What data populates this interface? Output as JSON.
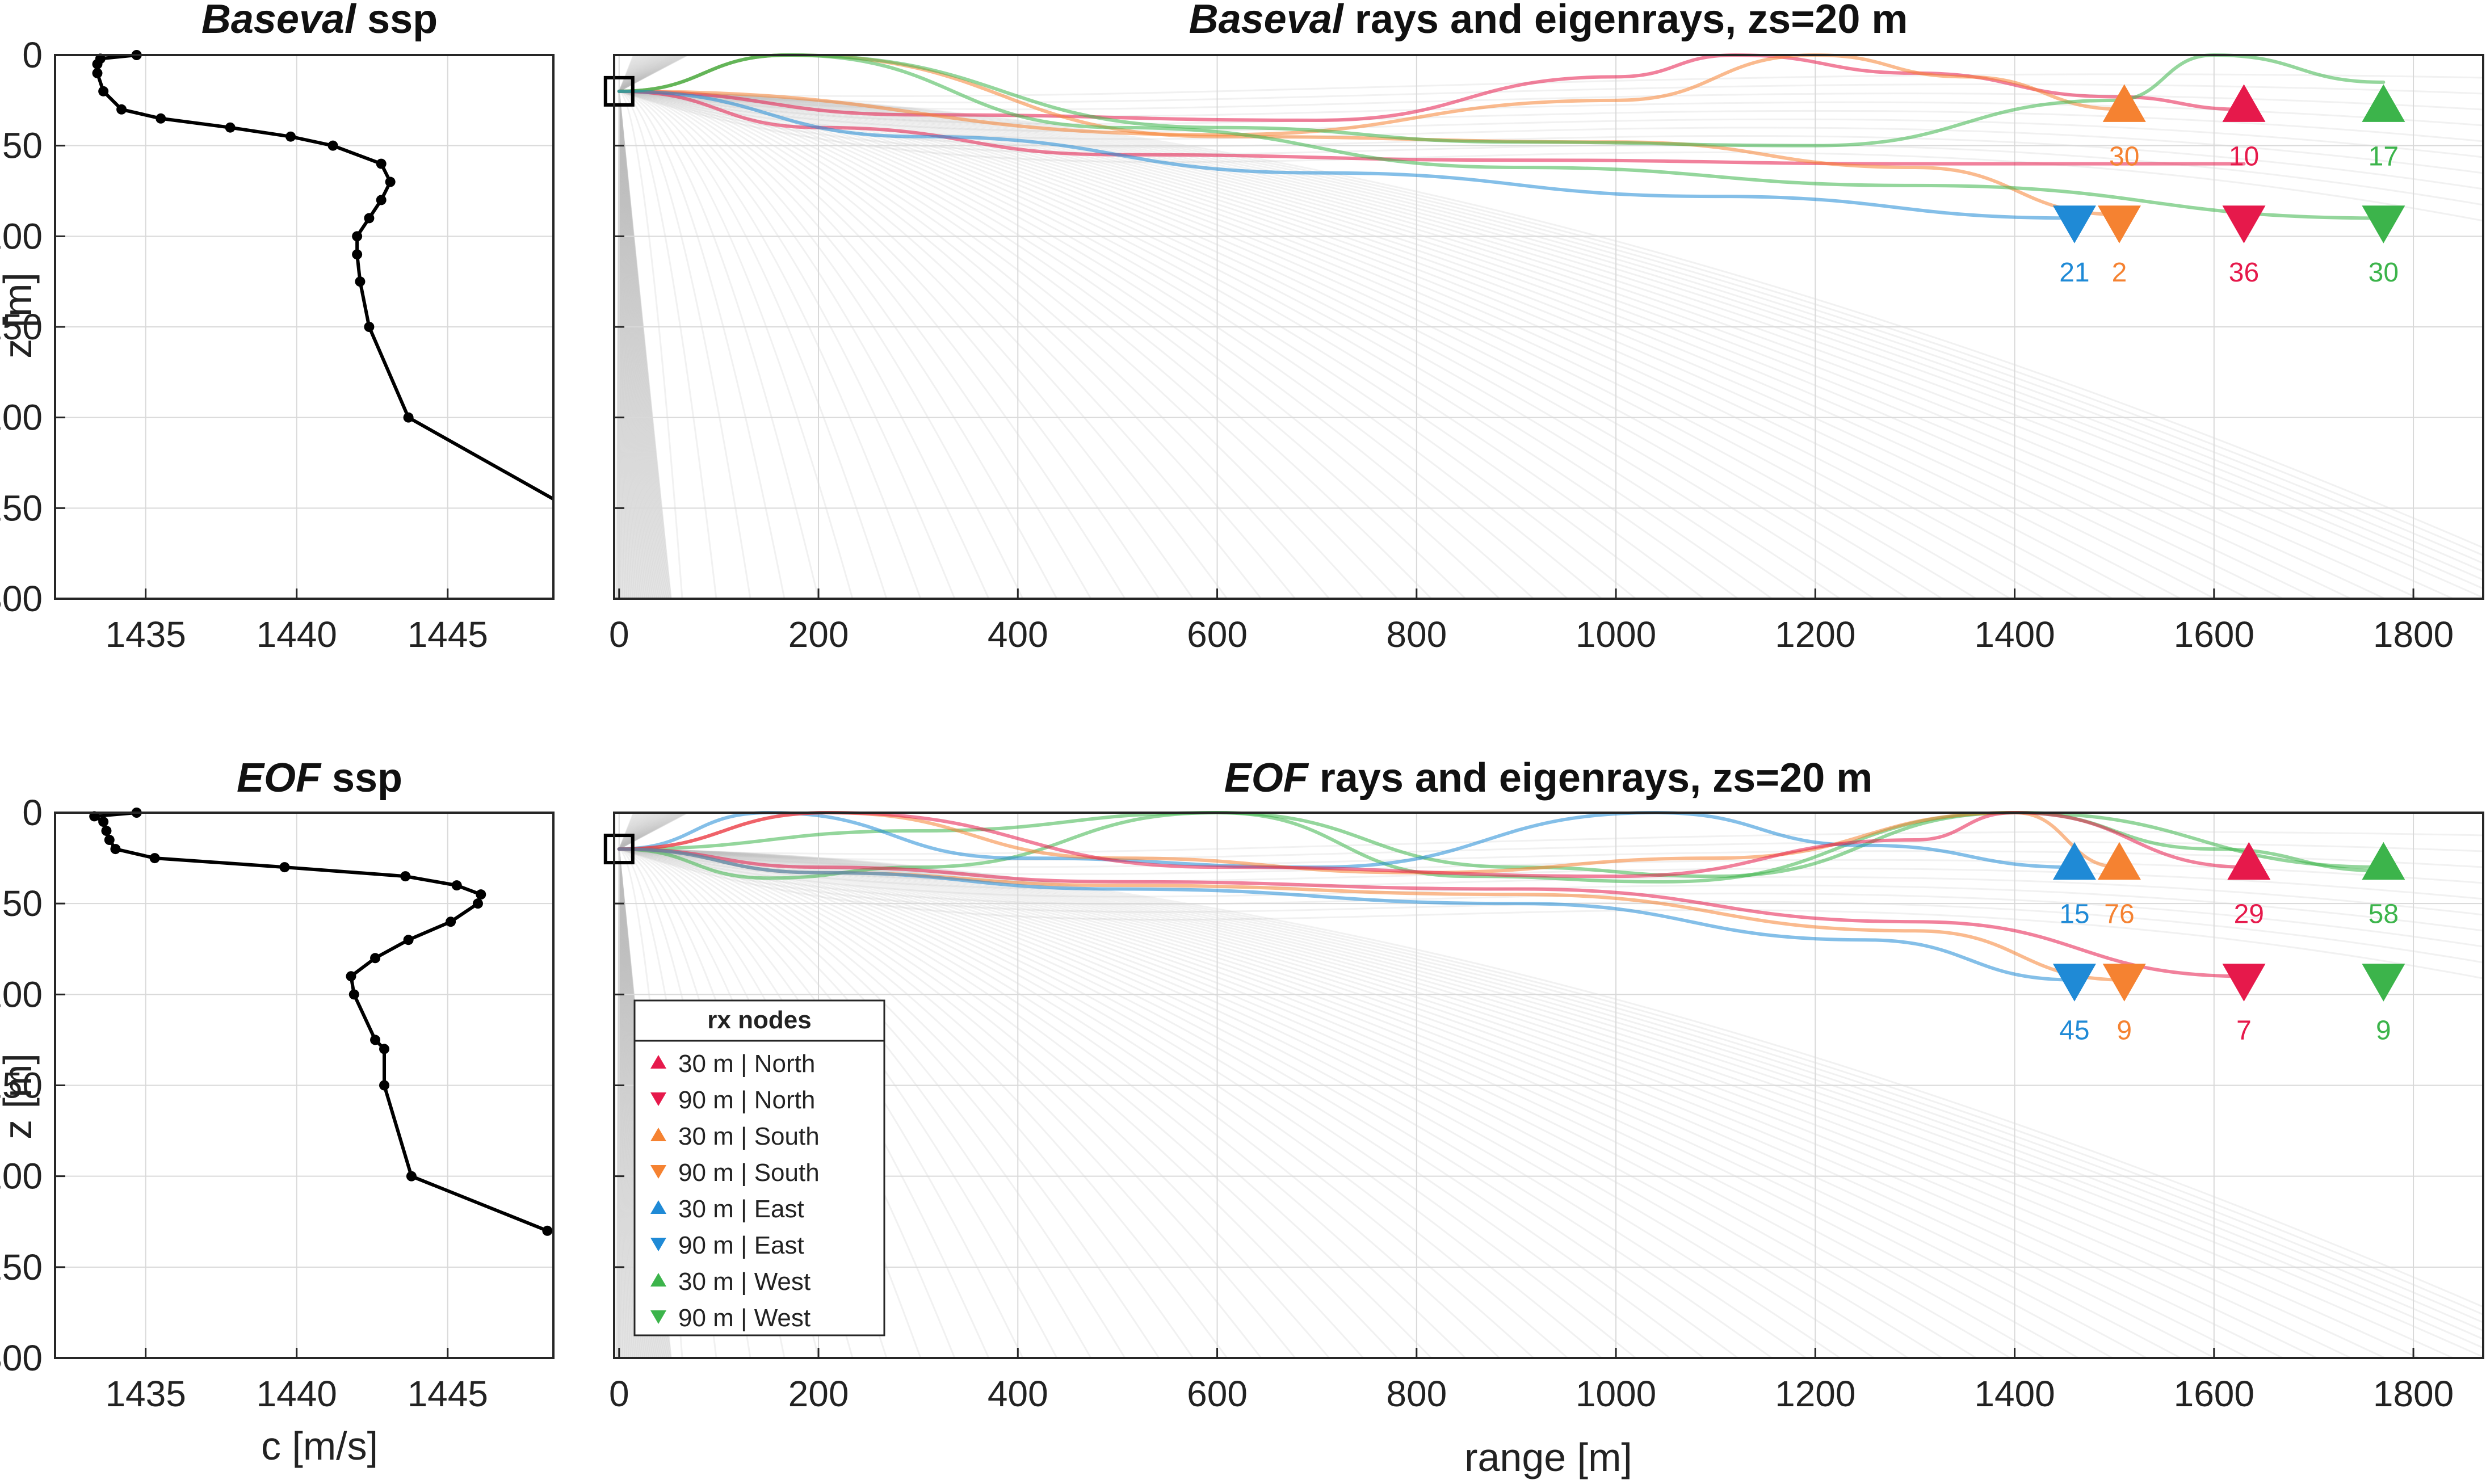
{
  "colors": {
    "north": "#e6194b",
    "south": "#f58231",
    "east": "#1f8ad6",
    "west": "#3cb44b",
    "ssp_line": "#000000",
    "grid": "#d9d9d9",
    "fan": "#bdbdbd"
  },
  "legend": {
    "title": "rx nodes",
    "items": [
      {
        "label": "30 m | North",
        "dir": "north",
        "marker": "up"
      },
      {
        "label": "90 m | North",
        "dir": "north",
        "marker": "down"
      },
      {
        "label": "30 m | South",
        "dir": "south",
        "marker": "up"
      },
      {
        "label": "90 m | South",
        "dir": "south",
        "marker": "down"
      },
      {
        "label": "30 m | East",
        "dir": "east",
        "marker": "up"
      },
      {
        "label": "90 m | East",
        "dir": "east",
        "marker": "down"
      },
      {
        "label": "30 m | West",
        "dir": "west",
        "marker": "up"
      },
      {
        "label": "90 m | West",
        "dir": "west",
        "marker": "down"
      }
    ]
  },
  "chart_data": [
    {
      "type": "line",
      "title_italic": "Baseval",
      "title_rest": " ssp",
      "xlabel": "",
      "ylabel": "z [m]",
      "xlim": [
        1432,
        1448.5
      ],
      "ylim": [
        0,
        300
      ],
      "y_reversed": true,
      "xticks": [
        1435,
        1440,
        1445
      ],
      "yticks": [
        0,
        50,
        100,
        150,
        200,
        250,
        300
      ],
      "grid": true,
      "series": [
        {
          "x": [
            1434.7,
            1433.5,
            1433.4,
            1433.4,
            1433.6,
            1434.2,
            1435.5,
            1437.8,
            1439.8,
            1441.2,
            1442.8,
            1443.1,
            1442.8,
            1442.4,
            1442.0,
            1442.0,
            1442.1,
            1442.4,
            1443.7,
            1448.5
          ],
          "y": [
            0,
            2,
            5,
            10,
            20,
            30,
            35,
            40,
            45,
            50,
            60,
            70,
            80,
            90,
            100,
            110,
            125,
            150,
            200,
            245
          ]
        }
      ]
    },
    {
      "type": "line",
      "title_italic": "Baseval",
      "title_rest": " rays and eigenrays, zs=20 m",
      "xlabel": "",
      "ylabel": "",
      "xlim": [
        -5,
        1870
      ],
      "ylim": [
        0,
        300
      ],
      "y_reversed": true,
      "xticks": [
        0,
        200,
        400,
        600,
        800,
        1000,
        1200,
        1400,
        1600,
        1800
      ],
      "yticks": [
        0,
        50,
        100,
        150,
        200,
        250,
        300
      ],
      "grid": true,
      "source": {
        "x": 0,
        "z": 20
      },
      "receivers": [
        {
          "dir": "south",
          "marker": "up",
          "x": 1510,
          "z": 28,
          "count": "30"
        },
        {
          "dir": "north",
          "marker": "up",
          "x": 1630,
          "z": 28,
          "count": "10"
        },
        {
          "dir": "west",
          "marker": "up",
          "x": 1770,
          "z": 28,
          "count": "17"
        },
        {
          "dir": "east",
          "marker": "down",
          "x": 1460,
          "z": 92,
          "count": "21"
        },
        {
          "dir": "south",
          "marker": "down",
          "x": 1505,
          "z": 92,
          "count": "2"
        },
        {
          "dir": "north",
          "marker": "down",
          "x": 1630,
          "z": 92,
          "count": "36"
        },
        {
          "dir": "west",
          "marker": "down",
          "x": 1770,
          "z": 92,
          "count": "30"
        }
      ],
      "eigenrays": [
        {
          "dir": "north",
          "x": [
            0,
            300,
            700,
            1000,
            1120,
            1300,
            1500,
            1630
          ],
          "z": [
            20,
            33,
            36,
            12,
            0,
            10,
            23,
            30
          ]
        },
        {
          "dir": "north",
          "x": [
            0,
            200,
            500,
            900,
            1300,
            1630
          ],
          "z": [
            20,
            40,
            55,
            58,
            60,
            60
          ]
        },
        {
          "dir": "south",
          "x": [
            0,
            600,
            1000,
            1200,
            1350,
            1510
          ],
          "z": [
            20,
            44,
            25,
            0,
            12,
            30
          ]
        },
        {
          "dir": "south",
          "x": [
            0,
            170,
            600,
            1000,
            1300,
            1505
          ],
          "z": [
            20,
            0,
            45,
            48,
            62,
            88
          ]
        },
        {
          "dir": "west",
          "x": [
            0,
            170,
            600,
            900,
            1200,
            1500,
            1600,
            1770
          ],
          "z": [
            20,
            0,
            40,
            48,
            50,
            25,
            0,
            15
          ]
        },
        {
          "dir": "west",
          "x": [
            0,
            170,
            500,
            900,
            1300,
            1770
          ],
          "z": [
            20,
            0,
            40,
            62,
            72,
            90
          ]
        },
        {
          "dir": "east",
          "x": [
            0,
            300,
            700,
            1100,
            1460
          ],
          "z": [
            20,
            45,
            65,
            78,
            90
          ]
        }
      ]
    },
    {
      "type": "line",
      "title_italic": "EOF",
      "title_rest": " ssp",
      "xlabel": "c [m/s]",
      "ylabel": "z [m]",
      "xlim": [
        1432,
        1448.5
      ],
      "ylim": [
        0,
        300
      ],
      "y_reversed": true,
      "xticks": [
        1435,
        1440,
        1445
      ],
      "yticks": [
        0,
        50,
        100,
        150,
        200,
        250,
        300
      ],
      "grid": true,
      "series": [
        {
          "x": [
            1434.7,
            1433.3,
            1433.6,
            1433.7,
            1433.8,
            1434.0,
            1435.3,
            1439.6,
            1443.6,
            1445.3,
            1446.1,
            1446.0,
            1445.1,
            1443.7,
            1442.6,
            1441.8,
            1441.9,
            1442.6,
            1442.9,
            1442.9,
            1443.8,
            1448.3
          ],
          "y": [
            0,
            2,
            5,
            10,
            15,
            20,
            25,
            30,
            35,
            40,
            45,
            50,
            60,
            70,
            80,
            90,
            100,
            125,
            130,
            150,
            200,
            230
          ]
        }
      ]
    },
    {
      "type": "line",
      "title_italic": "EOF",
      "title_rest": " rays and eigenrays, zs=20 m",
      "xlabel": "range [m]",
      "ylabel": "",
      "xlim": [
        -5,
        1870
      ],
      "ylim": [
        0,
        300
      ],
      "y_reversed": true,
      "xticks": [
        0,
        200,
        400,
        600,
        800,
        1000,
        1200,
        1400,
        1600,
        1800
      ],
      "yticks": [
        0,
        50,
        100,
        150,
        200,
        250,
        300
      ],
      "grid": true,
      "source": {
        "x": 0,
        "z": 20
      },
      "receivers": [
        {
          "dir": "east",
          "marker": "up",
          "x": 1460,
          "z": 28,
          "count": "15"
        },
        {
          "dir": "south",
          "marker": "up",
          "x": 1505,
          "z": 28,
          "count": "76"
        },
        {
          "dir": "north",
          "marker": "up",
          "x": 1635,
          "z": 28,
          "count": "29"
        },
        {
          "dir": "west",
          "marker": "up",
          "x": 1770,
          "z": 28,
          "count": "58"
        },
        {
          "dir": "east",
          "marker": "down",
          "x": 1460,
          "z": 92,
          "count": "45"
        },
        {
          "dir": "south",
          "marker": "down",
          "x": 1510,
          "z": 92,
          "count": "9"
        },
        {
          "dir": "north",
          "marker": "down",
          "x": 1630,
          "z": 92,
          "count": "7"
        },
        {
          "dir": "west",
          "marker": "down",
          "x": 1770,
          "z": 92,
          "count": "9"
        }
      ],
      "eigenrays": [
        {
          "dir": "west",
          "x": [
            0,
            300,
            600,
            850,
            1050,
            1400,
            1600,
            1770
          ],
          "z": [
            20,
            10,
            0,
            35,
            38,
            0,
            20,
            32
          ]
        },
        {
          "dir": "west",
          "x": [
            0,
            150,
            300,
            600,
            900,
            1100,
            1400,
            1770
          ],
          "z": [
            20,
            36,
            30,
            0,
            30,
            35,
            0,
            30
          ]
        },
        {
          "dir": "east",
          "x": [
            0,
            150,
            400,
            700,
            1040,
            1250,
            1460
          ],
          "z": [
            20,
            0,
            25,
            30,
            0,
            18,
            30
          ]
        },
        {
          "dir": "south",
          "x": [
            0,
            210,
            500,
            800,
            1100,
            1400,
            1505
          ],
          "z": [
            20,
            0,
            25,
            33,
            25,
            0,
            30
          ]
        },
        {
          "dir": "north",
          "x": [
            0,
            210,
            600,
            1000,
            1300,
            1400,
            1635
          ],
          "z": [
            20,
            0,
            30,
            35,
            15,
            0,
            30
          ]
        },
        {
          "dir": "north",
          "x": [
            0,
            200,
            500,
            900,
            1300,
            1630
          ],
          "z": [
            20,
            30,
            38,
            42,
            60,
            90
          ]
        },
        {
          "dir": "south",
          "x": [
            0,
            200,
            500,
            900,
            1300,
            1510
          ],
          "z": [
            20,
            33,
            40,
            45,
            65,
            92
          ]
        },
        {
          "dir": "east",
          "x": [
            0,
            200,
            500,
            900,
            1250,
            1460
          ],
          "z": [
            20,
            33,
            42,
            50,
            70,
            92
          ]
        }
      ]
    }
  ]
}
